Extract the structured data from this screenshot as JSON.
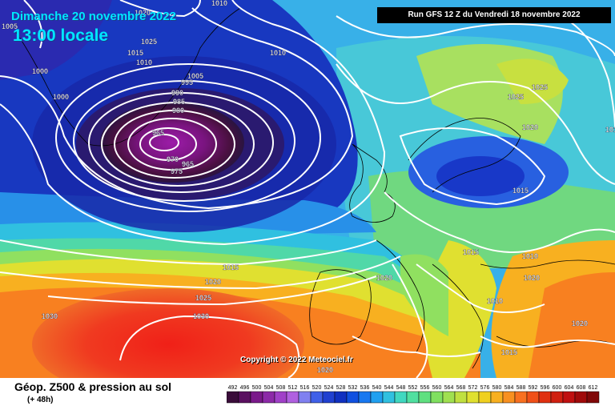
{
  "date_title": "Dimanche 20 novembre 2022",
  "time_title": "13:00 locale",
  "run_banner": "Run GFS 12 Z du Vendredi 18 novembre 2022",
  "copyright": "Copyright © 2022 Meteociel.fr",
  "product_title": "Géop. Z500 & pression au sol",
  "lead_time": "(+ 48h)",
  "legend": {
    "values": [
      "492",
      "496",
      "500",
      "504",
      "508",
      "512",
      "516",
      "520",
      "524",
      "528",
      "532",
      "536",
      "540",
      "544",
      "548",
      "552",
      "556",
      "560",
      "564",
      "568",
      "572",
      "576",
      "580",
      "584",
      "588",
      "592",
      "596",
      "600",
      "604",
      "608",
      "612"
    ],
    "colors": [
      "#3a0d3a",
      "#5a1060",
      "#7a1a8a",
      "#8c2aa8",
      "#a040c8",
      "#b060e0",
      "#8080f0",
      "#4060e8",
      "#2040d0",
      "#1030c0",
      "#1050e0",
      "#1878f0",
      "#20a0f0",
      "#30c0e0",
      "#40d8c0",
      "#50e0a0",
      "#60e080",
      "#80e060",
      "#a0e050",
      "#c0e040",
      "#e0e030",
      "#f0d020",
      "#f8b020",
      "#f89020",
      "#f87020",
      "#f05018",
      "#e03010",
      "#d02010",
      "#c01010",
      "#a00a0a",
      "#800808"
    ]
  },
  "pressure_labels": [
    "1020",
    "1010",
    "1005",
    "1025",
    "1015",
    "1010",
    "1000",
    "1000",
    "1005",
    "995",
    "990",
    "985",
    "980",
    "965",
    "970",
    "965",
    "975",
    "1010",
    "1025",
    "1025",
    "1020",
    "1015",
    "1015",
    "1020",
    "1010",
    "1015",
    "1020",
    "1010",
    "1010",
    "1025",
    "1030",
    "1020",
    "1015",
    "1020",
    "1030",
    "1020"
  ]
}
